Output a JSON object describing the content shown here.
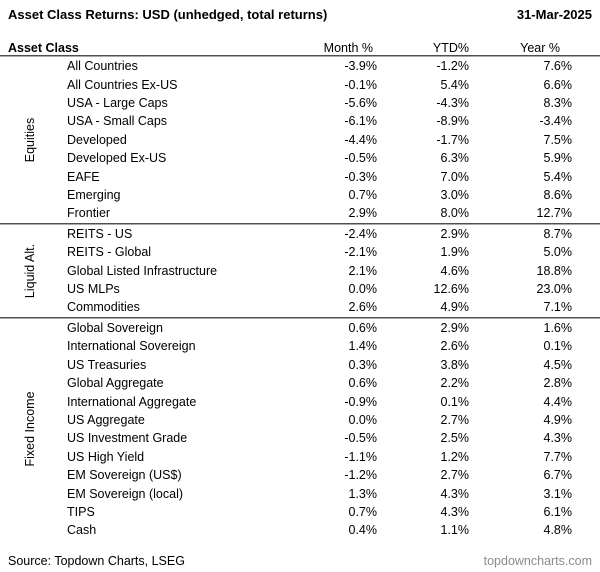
{
  "header": {
    "title": "Asset Class Returns: USD (unhedged, total returns)",
    "date": "31-Mar-2025"
  },
  "table": {
    "columns": [
      "Asset Class",
      "Month %",
      "YTD%",
      "Year %"
    ],
    "sections": [
      {
        "group": "Equities",
        "rows": [
          {
            "name": "All Countries",
            "month": "-3.9%",
            "ytd": "-1.2%",
            "year": "7.6%"
          },
          {
            "name": "All Countries Ex-US",
            "month": "-0.1%",
            "ytd": "5.4%",
            "year": "6.6%"
          },
          {
            "name": "USA - Large Caps",
            "month": "-5.6%",
            "ytd": "-4.3%",
            "year": "8.3%"
          },
          {
            "name": "USA - Small Caps",
            "month": "-6.1%",
            "ytd": "-8.9%",
            "year": "-3.4%"
          },
          {
            "name": "Developed",
            "month": "-4.4%",
            "ytd": "-1.7%",
            "year": "7.5%"
          },
          {
            "name": "Developed Ex-US",
            "month": "-0.5%",
            "ytd": "6.3%",
            "year": "5.9%"
          },
          {
            "name": "EAFE",
            "month": "-0.3%",
            "ytd": "7.0%",
            "year": "5.4%"
          },
          {
            "name": "Emerging",
            "month": "0.7%",
            "ytd": "3.0%",
            "year": "8.6%"
          },
          {
            "name": "Frontier",
            "month": "2.9%",
            "ytd": "8.0%",
            "year": "12.7%"
          }
        ]
      },
      {
        "group": "Liquid Alt.",
        "rows": [
          {
            "name": "REITS - US",
            "month": "-2.4%",
            "ytd": "2.9%",
            "year": "8.7%"
          },
          {
            "name": "REITS - Global",
            "month": "-2.1%",
            "ytd": "1.9%",
            "year": "5.0%"
          },
          {
            "name": "Global Listed Infrastructure",
            "month": "2.1%",
            "ytd": "4.6%",
            "year": "18.8%"
          },
          {
            "name": "US MLPs",
            "month": "0.0%",
            "ytd": "12.6%",
            "year": "23.0%"
          },
          {
            "name": "Commodities",
            "month": "2.6%",
            "ytd": "4.9%",
            "year": "7.1%"
          }
        ]
      },
      {
        "group": "Fixed Income",
        "rows": [
          {
            "name": "Global Sovereign",
            "month": "0.6%",
            "ytd": "2.9%",
            "year": "1.6%"
          },
          {
            "name": "International Sovereign",
            "month": "1.4%",
            "ytd": "2.6%",
            "year": "0.1%"
          },
          {
            "name": "US Treasuries",
            "month": "0.3%",
            "ytd": "3.8%",
            "year": "4.5%"
          },
          {
            "name": "Global Aggregate",
            "month": "0.6%",
            "ytd": "2.2%",
            "year": "2.8%"
          },
          {
            "name": "International Aggregate",
            "month": "-0.9%",
            "ytd": "0.1%",
            "year": "4.4%"
          },
          {
            "name": "US Aggregate",
            "month": "0.0%",
            "ytd": "2.7%",
            "year": "4.9%"
          },
          {
            "name": "US Investment Grade",
            "month": "-0.5%",
            "ytd": "2.5%",
            "year": "4.3%"
          },
          {
            "name": "US High Yield",
            "month": "-1.1%",
            "ytd": "1.2%",
            "year": "7.7%"
          },
          {
            "name": "EM Sovereign (US$)",
            "month": "-1.2%",
            "ytd": "2.7%",
            "year": "6.7%"
          },
          {
            "name": "EM Sovereign (local)",
            "month": "1.3%",
            "ytd": "4.3%",
            "year": "3.1%"
          },
          {
            "name": "TIPS",
            "month": "0.7%",
            "ytd": "4.3%",
            "year": "6.1%"
          },
          {
            "name": "Cash",
            "month": "0.4%",
            "ytd": "1.1%",
            "year": "4.8%"
          }
        ]
      }
    ]
  },
  "footer": {
    "source": "Source: Topdown Charts, LSEG",
    "site": "topdowncharts.com"
  },
  "colors": {
    "divider_dark": "#4f4f4f",
    "divider_light": "#a9a9a9",
    "footer_gray": "#8c8c8c",
    "text": "#000000",
    "background": "#ffffff"
  },
  "chart_data": {
    "type": "table",
    "title": "Asset Class Returns: USD (unhedged, total returns)",
    "as_of_date": "31-Mar-2025",
    "columns": [
      "Asset Class",
      "Month %",
      "YTD%",
      "Year %"
    ],
    "groups": [
      {
        "group": "Equities",
        "rows": [
          [
            "All Countries",
            -3.9,
            -1.2,
            7.6
          ],
          [
            "All Countries Ex-US",
            -0.1,
            5.4,
            6.6
          ],
          [
            "USA - Large Caps",
            -5.6,
            -4.3,
            8.3
          ],
          [
            "USA - Small Caps",
            -6.1,
            -8.9,
            -3.4
          ],
          [
            "Developed",
            -4.4,
            -1.7,
            7.5
          ],
          [
            "Developed Ex-US",
            -0.5,
            6.3,
            5.9
          ],
          [
            "EAFE",
            -0.3,
            7.0,
            5.4
          ],
          [
            "Emerging",
            0.7,
            3.0,
            8.6
          ],
          [
            "Frontier",
            2.9,
            8.0,
            12.7
          ]
        ]
      },
      {
        "group": "Liquid Alt.",
        "rows": [
          [
            "REITS - US",
            -2.4,
            2.9,
            8.7
          ],
          [
            "REITS - Global",
            -2.1,
            1.9,
            5.0
          ],
          [
            "Global Listed Infrastructure",
            2.1,
            4.6,
            18.8
          ],
          [
            "US MLPs",
            0.0,
            12.6,
            23.0
          ],
          [
            "Commodities",
            2.6,
            4.9,
            7.1
          ]
        ]
      },
      {
        "group": "Fixed Income",
        "rows": [
          [
            "Global Sovereign",
            0.6,
            2.9,
            1.6
          ],
          [
            "International Sovereign",
            1.4,
            2.6,
            0.1
          ],
          [
            "US Treasuries",
            0.3,
            3.8,
            4.5
          ],
          [
            "Global Aggregate",
            0.6,
            2.2,
            2.8
          ],
          [
            "International Aggregate",
            -0.9,
            0.1,
            4.4
          ],
          [
            "US Aggregate",
            0.0,
            2.7,
            4.9
          ],
          [
            "US Investment Grade",
            -0.5,
            2.5,
            4.3
          ],
          [
            "US High Yield",
            -1.1,
            1.2,
            7.7
          ],
          [
            "EM Sovereign (US$)",
            -1.2,
            2.7,
            6.7
          ],
          [
            "EM Sovereign (local)",
            1.3,
            4.3,
            3.1
          ],
          [
            "TIPS",
            0.7,
            4.3,
            6.1
          ],
          [
            "Cash",
            0.4,
            1.1,
            4.8
          ]
        ]
      },
      {
        "footer_source": "Source: Topdown Charts, LSEG",
        "footer_site": "topdowncharts.com"
      }
    ]
  }
}
